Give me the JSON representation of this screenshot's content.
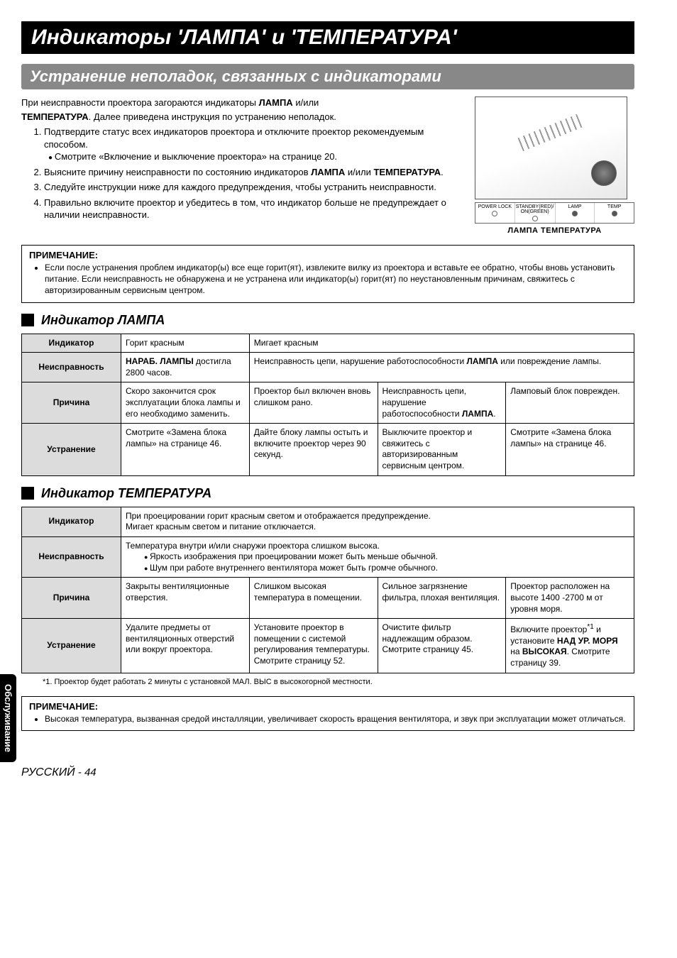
{
  "title": "Индикаторы 'ЛАМПА' и 'ТЕМПЕРАТУРА'",
  "subtitle": "Устранение неполадок, связанных с индикаторами",
  "intro": {
    "p1a": "При неисправности проектора загораются индикаторы ",
    "p1b": "ЛАМПА",
    "p1c": " и/или ",
    "p2a": "ТЕМПЕРАТУРА",
    "p2b": ". Далее приведена инструкция по устранению неполадок.",
    "li1": "Подтвердите статус всех индикаторов проектора и отключите проектор рекомендуемым способом.",
    "li1sub": "Смотрите «Включение и выключение проектора» на странице 20.",
    "li2a": "Выясните причину неисправности по состоянию индикаторов ",
    "li2b": "ЛАМПА",
    "li2c": " и/или ",
    "li2d": "ТЕМПЕРАТУРА",
    "li2e": ".",
    "li3": "Следуйте инструкции ниже для каждого предупреждения, чтобы устранить неисправности.",
    "li4": "Правильно включите проектор и убедитесь в том, что индикатор больше не предупреждает о наличии неисправности."
  },
  "ind": {
    "c1": "POWER LOCK",
    "c2": "STANDBY(RED)/ ON(GREEN)",
    "c3": "LAMP",
    "c4": "TEMP"
  },
  "imgcap": "ЛАМПА ТЕМПЕРАТУРА",
  "note1": {
    "title": "ПРИМЕЧАНИЕ:",
    "text": "Если после устранения проблем индикатор(ы) все еще горит(ят), извлеките вилку из проектора и вставьте ее обратно, чтобы вновь установить питание. Если неисправность не обнаружена и не устранена или индикатор(ы) горит(ят) по неустановленным причинам, свяжитесь с авторизированным сервисным центром."
  },
  "lamp": {
    "heading": "Индикатор ЛАМПА",
    "rows": {
      "indicator": {
        "label": "Индикатор",
        "c1": "Горит красным",
        "c2": "Мигает красным"
      },
      "fault": {
        "label": "Неисправность",
        "c1a": "НАРАБ. ЛАМПЫ",
        "c1b": " достигла 2800 часов.",
        "c2a": "Неисправность цепи, нарушение работоспособности ",
        "c2b": "ЛАМПА",
        "c2c": " или повреждение лампы."
      },
      "cause": {
        "label": "Причина",
        "c1": "Скоро закончится срок эксплуатации блока лампы и его необходимо заменить.",
        "c2": "Проектор был включен вновь слишком рано.",
        "c3a": "Неисправность цепи, нарушение работоспособности ",
        "c3b": "ЛАМПА",
        "c3c": ".",
        "c4": "Ламповый блок поврежден."
      },
      "remedy": {
        "label": "Устранение",
        "c1": "Смотрите «Замена блока лампы» на странице 46.",
        "c2": "Дайте блоку лампы остыть и включите проектор через 90 секунд.",
        "c3": "Выключите проектор и свяжитесь с авторизированным сервисным центром.",
        "c4": "Смотрите «Замена блока лампы» на странице 46."
      }
    }
  },
  "temp": {
    "heading": "Индикатор ТЕМПЕРАТУРА",
    "rows": {
      "indicator": {
        "label": "Индикатор",
        "text": "При проецировании горит красным светом и отображается предупреждение.\nМигает красным светом и питание отключается."
      },
      "fault": {
        "label": "Неисправность",
        "text": "Температура внутри и/или снаружи проектора слишком высока.",
        "b1": "Яркость изображения при проецировании может быть меньше обычной.",
        "b2": "Шум при работе внутреннего вентилятора может быть громче обычного."
      },
      "cause": {
        "label": "Причина",
        "c1": "Закрыты вентиляционные отверстия.",
        "c2": "Слишком высокая температура в помещении.",
        "c3": "Сильное загрязнение фильтра, плохая вентиляция.",
        "c4": "Проектор расположен на высоте 1400 -2700 м от уровня моря."
      },
      "remedy": {
        "label": "Устранение",
        "c1": "Удалите предметы от вентиляционных отверстий или вокруг проектора.",
        "c2": "Установите проектор в помещении с системой регулирования температуры. Смотрите страницу 52.",
        "c3": "Очистите фильтр надлежащим образом. Смотрите страницу 45.",
        "c4a": "Включите проектор",
        "c4b": " и установите ",
        "c4c": "НАД УР. МОРЯ",
        "c4d": " на ",
        "c4e": "ВЫСОКАЯ",
        "c4f": ". Смотрите страницу 39.",
        "sup": "*1"
      }
    }
  },
  "footnote": "*1.  Проектор будет работать 2 минуты с установкой МАЛ. ВЫС в высокогорной местности.",
  "note2": {
    "title": "ПРИМЕЧАНИЕ:",
    "text": "Высокая температура, вызванная средой инсталляции, увеличивает скорость вращения вентилятора, и звук при эксплуатации может отличаться."
  },
  "sidetab": "Обслуживание",
  "footer_lang": "РУССКИЙ",
  "footer_page": " - 44"
}
